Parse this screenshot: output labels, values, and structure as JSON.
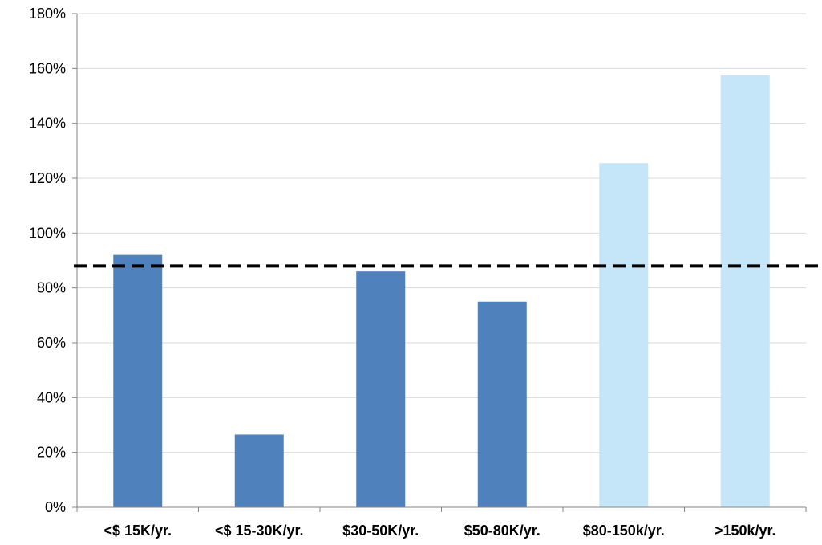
{
  "chart_data": {
    "type": "bar",
    "categories": [
      "<$ 15K/yr.",
      "<$ 15-30K/yr.",
      "$30-50K/yr.",
      "$50-80K/yr.",
      "$80-150k/yr.",
      ">150k/yr."
    ],
    "values": [
      92,
      26.5,
      86,
      75,
      125.5,
      157.5
    ],
    "bar_colors": [
      "#4f81bd",
      "#4f81bd",
      "#4f81bd",
      "#4f81bd",
      "#c5e5f9",
      "#c5e5f9"
    ],
    "reference_line": {
      "value": 88,
      "style": "dashed",
      "color": "#000000"
    },
    "ylim": [
      0,
      180
    ],
    "y_ticks": [
      0,
      20,
      40,
      60,
      80,
      100,
      120,
      140,
      160,
      180
    ],
    "y_tick_labels": [
      "0%",
      "20%",
      "40%",
      "60%",
      "80%",
      "100%",
      "120%",
      "140%",
      "160%",
      "180%"
    ],
    "title": "",
    "xlabel": "",
    "ylabel": "",
    "grid": true,
    "legend": "none"
  }
}
